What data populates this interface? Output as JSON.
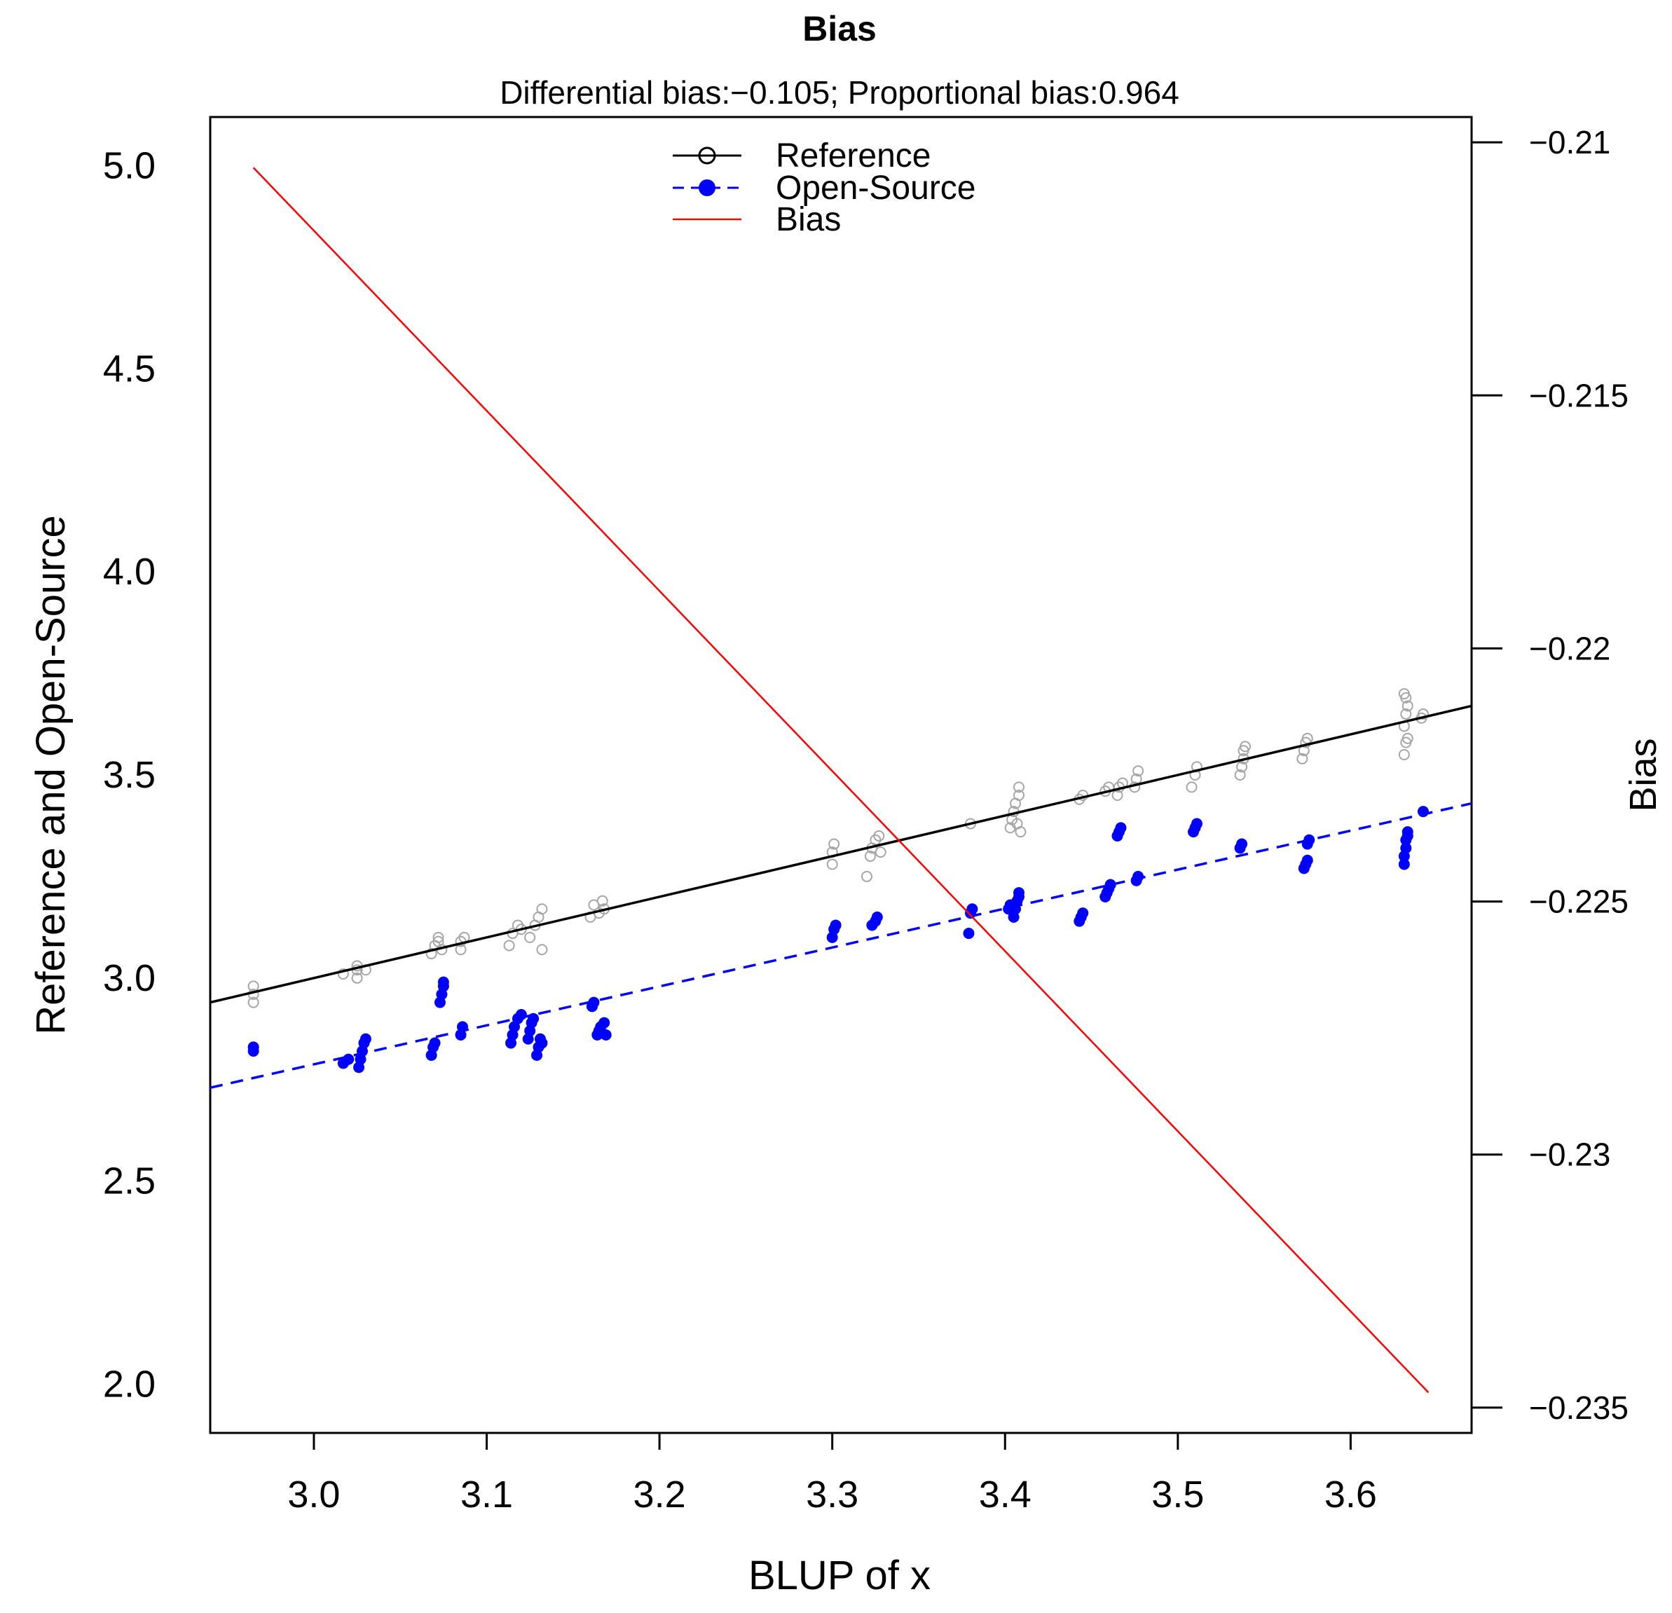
{
  "chart_data": {
    "type": "scatter",
    "title": "Bias",
    "subtitle": "Differential bias:−0.105; Proportional bias:0.964",
    "xlabel": "BLUP of x",
    "ylabel": "Reference and Open-Source",
    "y2label": "Bias",
    "xlim": [
      2.94,
      3.67
    ],
    "ylim": [
      1.88,
      5.12
    ],
    "y2lim": [
      -0.2355,
      -0.2095
    ],
    "xticks": [
      "3.0",
      "3.1",
      "3.2",
      "3.3",
      "3.4",
      "3.5",
      "3.6"
    ],
    "yticks": [
      "2.0",
      "2.5",
      "3.0",
      "3.5",
      "4.0",
      "4.5",
      "5.0"
    ],
    "y2ticks": [
      "−0.21",
      "−0.215",
      "−0.22",
      "−0.225",
      "−0.23",
      "−0.235"
    ],
    "xtick_values": [
      3.0,
      3.1,
      3.2,
      3.3,
      3.4,
      3.5,
      3.6
    ],
    "ytick_values": [
      2.0,
      2.5,
      3.0,
      3.5,
      4.0,
      4.5,
      5.0
    ],
    "y2tick_values": [
      -0.21,
      -0.215,
      -0.22,
      -0.225,
      -0.23,
      -0.235
    ],
    "legend": {
      "position": "top-center",
      "entries": [
        "Reference",
        "Open-Source",
        "Bias"
      ]
    },
    "colors": {
      "reference_points": "#a6a6a6",
      "reference_line": "#000000",
      "open_source": "#0000ff",
      "bias": "#ff0000"
    },
    "series": [
      {
        "name": "Reference",
        "kind": "points",
        "points": [
          [
            2.965,
            2.94
          ],
          [
            2.965,
            2.96
          ],
          [
            2.965,
            2.98
          ],
          [
            3.017,
            3.01
          ],
          [
            3.025,
            3.0
          ],
          [
            3.025,
            3.02
          ],
          [
            3.025,
            3.03
          ],
          [
            3.03,
            3.02
          ],
          [
            3.068,
            3.06
          ],
          [
            3.07,
            3.08
          ],
          [
            3.072,
            3.1
          ],
          [
            3.074,
            3.07
          ],
          [
            3.072,
            3.09
          ],
          [
            3.085,
            3.07
          ],
          [
            3.085,
            3.09
          ],
          [
            3.087,
            3.1
          ],
          [
            3.113,
            3.08
          ],
          [
            3.115,
            3.11
          ],
          [
            3.118,
            3.13
          ],
          [
            3.12,
            3.12
          ],
          [
            3.125,
            3.1
          ],
          [
            3.128,
            3.13
          ],
          [
            3.13,
            3.15
          ],
          [
            3.132,
            3.17
          ],
          [
            3.132,
            3.07
          ],
          [
            3.16,
            3.15
          ],
          [
            3.162,
            3.18
          ],
          [
            3.165,
            3.16
          ],
          [
            3.167,
            3.19
          ],
          [
            3.168,
            3.17
          ],
          [
            3.3,
            3.28
          ],
          [
            3.3,
            3.31
          ],
          [
            3.301,
            3.33
          ],
          [
            3.32,
            3.25
          ],
          [
            3.322,
            3.3
          ],
          [
            3.323,
            3.32
          ],
          [
            3.325,
            3.34
          ],
          [
            3.327,
            3.35
          ],
          [
            3.328,
            3.31
          ],
          [
            3.38,
            3.38
          ],
          [
            3.403,
            3.37
          ],
          [
            3.404,
            3.39
          ],
          [
            3.405,
            3.41
          ],
          [
            3.406,
            3.43
          ],
          [
            3.407,
            3.38
          ],
          [
            3.408,
            3.45
          ],
          [
            3.408,
            3.47
          ],
          [
            3.409,
            3.36
          ],
          [
            3.443,
            3.44
          ],
          [
            3.445,
            3.45
          ],
          [
            3.458,
            3.46
          ],
          [
            3.46,
            3.47
          ],
          [
            3.465,
            3.45
          ],
          [
            3.466,
            3.47
          ],
          [
            3.468,
            3.48
          ],
          [
            3.475,
            3.47
          ],
          [
            3.476,
            3.49
          ],
          [
            3.477,
            3.51
          ],
          [
            3.508,
            3.47
          ],
          [
            3.51,
            3.5
          ],
          [
            3.511,
            3.52
          ],
          [
            3.536,
            3.5
          ],
          [
            3.537,
            3.52
          ],
          [
            3.538,
            3.54
          ],
          [
            3.538,
            3.56
          ],
          [
            3.539,
            3.57
          ],
          [
            3.572,
            3.54
          ],
          [
            3.573,
            3.56
          ],
          [
            3.574,
            3.58
          ],
          [
            3.575,
            3.59
          ],
          [
            3.631,
            3.55
          ],
          [
            3.632,
            3.58
          ],
          [
            3.633,
            3.59
          ],
          [
            3.631,
            3.62
          ],
          [
            3.632,
            3.65
          ],
          [
            3.633,
            3.67
          ],
          [
            3.632,
            3.69
          ],
          [
            3.631,
            3.7
          ],
          [
            3.641,
            3.64
          ],
          [
            3.642,
            3.65
          ]
        ]
      },
      {
        "name": "Reference fit",
        "kind": "line",
        "points": [
          [
            2.94,
            2.94
          ],
          [
            3.67,
            3.67
          ]
        ]
      },
      {
        "name": "Open-Source",
        "kind": "points",
        "points": [
          [
            2.965,
            2.82
          ],
          [
            2.965,
            2.83
          ],
          [
            3.017,
            2.79
          ],
          [
            3.02,
            2.8
          ],
          [
            3.026,
            2.78
          ],
          [
            3.027,
            2.8
          ],
          [
            3.028,
            2.82
          ],
          [
            3.029,
            2.84
          ],
          [
            3.03,
            2.85
          ],
          [
            3.068,
            2.81
          ],
          [
            3.069,
            2.83
          ],
          [
            3.07,
            2.84
          ],
          [
            3.073,
            2.94
          ],
          [
            3.074,
            2.96
          ],
          [
            3.075,
            2.98
          ],
          [
            3.075,
            2.99
          ],
          [
            3.085,
            2.86
          ],
          [
            3.086,
            2.88
          ],
          [
            3.114,
            2.84
          ],
          [
            3.115,
            2.86
          ],
          [
            3.116,
            2.88
          ],
          [
            3.118,
            2.9
          ],
          [
            3.12,
            2.91
          ],
          [
            3.124,
            2.85
          ],
          [
            3.125,
            2.87
          ],
          [
            3.126,
            2.89
          ],
          [
            3.127,
            2.9
          ],
          [
            3.129,
            2.81
          ],
          [
            3.13,
            2.83
          ],
          [
            3.131,
            2.85
          ],
          [
            3.132,
            2.84
          ],
          [
            3.161,
            2.93
          ],
          [
            3.162,
            2.94
          ],
          [
            3.164,
            2.86
          ],
          [
            3.165,
            2.87
          ],
          [
            3.166,
            2.88
          ],
          [
            3.168,
            2.89
          ],
          [
            3.169,
            2.86
          ],
          [
            3.3,
            3.1
          ],
          [
            3.301,
            3.12
          ],
          [
            3.302,
            3.13
          ],
          [
            3.323,
            3.13
          ],
          [
            3.325,
            3.14
          ],
          [
            3.326,
            3.15
          ],
          [
            3.379,
            3.11
          ],
          [
            3.38,
            3.16
          ],
          [
            3.381,
            3.17
          ],
          [
            3.402,
            3.17
          ],
          [
            3.403,
            3.18
          ],
          [
            3.405,
            3.15
          ],
          [
            3.406,
            3.17
          ],
          [
            3.407,
            3.19
          ],
          [
            3.408,
            3.2
          ],
          [
            3.408,
            3.21
          ],
          [
            3.443,
            3.14
          ],
          [
            3.444,
            3.15
          ],
          [
            3.445,
            3.16
          ],
          [
            3.458,
            3.2
          ],
          [
            3.459,
            3.21
          ],
          [
            3.46,
            3.22
          ],
          [
            3.461,
            3.23
          ],
          [
            3.465,
            3.35
          ],
          [
            3.466,
            3.36
          ],
          [
            3.467,
            3.37
          ],
          [
            3.476,
            3.24
          ],
          [
            3.477,
            3.25
          ],
          [
            3.509,
            3.36
          ],
          [
            3.51,
            3.37
          ],
          [
            3.511,
            3.38
          ],
          [
            3.536,
            3.32
          ],
          [
            3.537,
            3.33
          ],
          [
            3.573,
            3.27
          ],
          [
            3.574,
            3.28
          ],
          [
            3.575,
            3.29
          ],
          [
            3.575,
            3.33
          ],
          [
            3.576,
            3.34
          ],
          [
            3.631,
            3.28
          ],
          [
            3.631,
            3.3
          ],
          [
            3.632,
            3.32
          ],
          [
            3.632,
            3.34
          ],
          [
            3.633,
            3.35
          ],
          [
            3.633,
            3.36
          ],
          [
            3.642,
            3.41
          ]
        ]
      },
      {
        "name": "Open-Source fit",
        "kind": "line",
        "points": [
          [
            2.94,
            2.73
          ],
          [
            3.67,
            3.43
          ]
        ]
      },
      {
        "name": "Bias",
        "kind": "line",
        "axis": "right",
        "points": [
          [
            2.965,
            -0.2105
          ],
          [
            3.645,
            -0.2347
          ]
        ]
      }
    ]
  }
}
